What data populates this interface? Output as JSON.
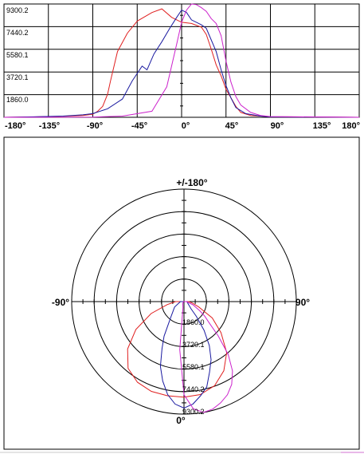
{
  "chart_data": [
    {
      "type": "line",
      "xlim": [
        -180,
        180
      ],
      "ylim": [
        0,
        9300.2
      ],
      "x_tick_labels": [
        "-180°",
        "-135°",
        "-90°",
        "-45°",
        "0°",
        "45°",
        "90°",
        "135°",
        "180°"
      ],
      "y_tick_labels": [
        "1860.0",
        "3720.1",
        "5580.1",
        "7440.2",
        "9300.2"
      ],
      "grid": true,
      "series": [
        {
          "color": "#e02020",
          "points": [
            [
              -180,
              0
            ],
            [
              -150,
              30
            ],
            [
              -120,
              80
            ],
            [
              -100,
              150
            ],
            [
              -90,
              250
            ],
            [
              -85,
              500
            ],
            [
              -80,
              900
            ],
            [
              -75,
              1900
            ],
            [
              -72,
              3000
            ],
            [
              -65,
              5400
            ],
            [
              -55,
              6900
            ],
            [
              -45,
              7900
            ],
            [
              -30,
              8600
            ],
            [
              -20,
              8900
            ],
            [
              -10,
              8200
            ],
            [
              0,
              7800
            ],
            [
              10,
              7700
            ],
            [
              20,
              7400
            ],
            [
              25,
              6800
            ],
            [
              30,
              5600
            ],
            [
              35,
              4300
            ],
            [
              40,
              3400
            ],
            [
              45,
              2300
            ],
            [
              55,
              900
            ],
            [
              60,
              400
            ],
            [
              70,
              150
            ],
            [
              90,
              50
            ],
            [
              180,
              0
            ]
          ]
        },
        {
          "color": "#1a1aa0",
          "points": [
            [
              -180,
              0
            ],
            [
              -150,
              40
            ],
            [
              -120,
              100
            ],
            [
              -100,
              200
            ],
            [
              -90,
              300
            ],
            [
              -75,
              700
            ],
            [
              -60,
              1500
            ],
            [
              -50,
              3000
            ],
            [
              -40,
              4200
            ],
            [
              -35,
              3900
            ],
            [
              -28,
              5200
            ],
            [
              -20,
              6200
            ],
            [
              -12,
              7300
            ],
            [
              -5,
              8200
            ],
            [
              0,
              8800
            ],
            [
              5,
              8600
            ],
            [
              10,
              8000
            ],
            [
              20,
              7600
            ],
            [
              25,
              7300
            ],
            [
              35,
              5400
            ],
            [
              40,
              3900
            ],
            [
              45,
              2600
            ],
            [
              50,
              1600
            ],
            [
              55,
              800
            ],
            [
              65,
              300
            ],
            [
              80,
              100
            ],
            [
              90,
              30
            ],
            [
              180,
              0
            ]
          ]
        },
        {
          "color": "#cc22cc",
          "points": [
            [
              -180,
              0
            ],
            [
              -90,
              20
            ],
            [
              -60,
              100
            ],
            [
              -30,
              500
            ],
            [
              -15,
              2500
            ],
            [
              -5,
              6000
            ],
            [
              0,
              7800
            ],
            [
              5,
              8800
            ],
            [
              10,
              9300
            ],
            [
              15,
              9250
            ],
            [
              20,
              9000
            ],
            [
              25,
              8700
            ],
            [
              30,
              8100
            ],
            [
              35,
              7700
            ],
            [
              40,
              6700
            ],
            [
              45,
              4600
            ],
            [
              50,
              2900
            ],
            [
              55,
              1700
            ],
            [
              60,
              1000
            ],
            [
              70,
              400
            ],
            [
              80,
              150
            ],
            [
              90,
              60
            ],
            [
              180,
              0
            ]
          ]
        }
      ]
    },
    {
      "type": "polar",
      "rmax": 9300.2,
      "angle_labels": [
        "+/-180°",
        "-90°",
        "90°",
        "0°"
      ],
      "ring_labels": [
        "1860.0",
        "3720.1",
        "5580.1",
        "7440.2",
        "9300.2"
      ],
      "series": [
        {
          "color": "#e02020",
          "points": [
            [
              0,
              7900
            ],
            [
              10,
              7800
            ],
            [
              20,
              7400
            ],
            [
              30,
              6600
            ],
            [
              40,
              5500
            ],
            [
              50,
              4000
            ],
            [
              60,
              2700
            ],
            [
              70,
              1300
            ],
            [
              80,
              700
            ],
            [
              90,
              400
            ],
            [
              180,
              0
            ],
            [
              -90,
              700
            ],
            [
              -80,
              1400
            ],
            [
              -70,
              2900
            ],
            [
              -60,
              4600
            ],
            [
              -50,
              6100
            ],
            [
              -40,
              7200
            ],
            [
              -30,
              7700
            ],
            [
              -20,
              7900
            ],
            [
              -10,
              7900
            ],
            [
              0,
              7900
            ]
          ]
        },
        {
          "color": "#1a1aa0",
          "points": [
            [
              0,
              8800
            ],
            [
              5,
              8500
            ],
            [
              10,
              7900
            ],
            [
              15,
              7300
            ],
            [
              20,
              6200
            ],
            [
              25,
              5300
            ],
            [
              30,
              4200
            ],
            [
              35,
              2900
            ],
            [
              40,
              1600
            ],
            [
              45,
              800
            ],
            [
              50,
              600
            ],
            [
              60,
              400
            ],
            [
              90,
              250
            ],
            [
              180,
              0
            ],
            [
              -90,
              300
            ],
            [
              -60,
              900
            ],
            [
              -40,
              1700
            ],
            [
              -30,
              3300
            ],
            [
              -25,
              4300
            ],
            [
              -20,
              5700
            ],
            [
              -15,
              6800
            ],
            [
              -10,
              7800
            ],
            [
              -5,
              8500
            ],
            [
              0,
              8800
            ]
          ]
        },
        {
          "color": "#cc22cc",
          "points": [
            [
              0,
              7700
            ],
            [
              5,
              8900
            ],
            [
              10,
              9300
            ],
            [
              15,
              9200
            ],
            [
              20,
              8900
            ],
            [
              25,
              8500
            ],
            [
              30,
              7900
            ],
            [
              35,
              7000
            ],
            [
              40,
              5700
            ],
            [
              45,
              4000
            ],
            [
              50,
              2700
            ],
            [
              55,
              2100
            ],
            [
              60,
              1500
            ],
            [
              70,
              800
            ],
            [
              90,
              200
            ],
            [
              180,
              0
            ],
            [
              -90,
              50
            ],
            [
              -30,
              200
            ],
            [
              -10,
              500
            ],
            [
              -5,
              4000
            ],
            [
              0,
              7700
            ]
          ]
        }
      ]
    }
  ]
}
